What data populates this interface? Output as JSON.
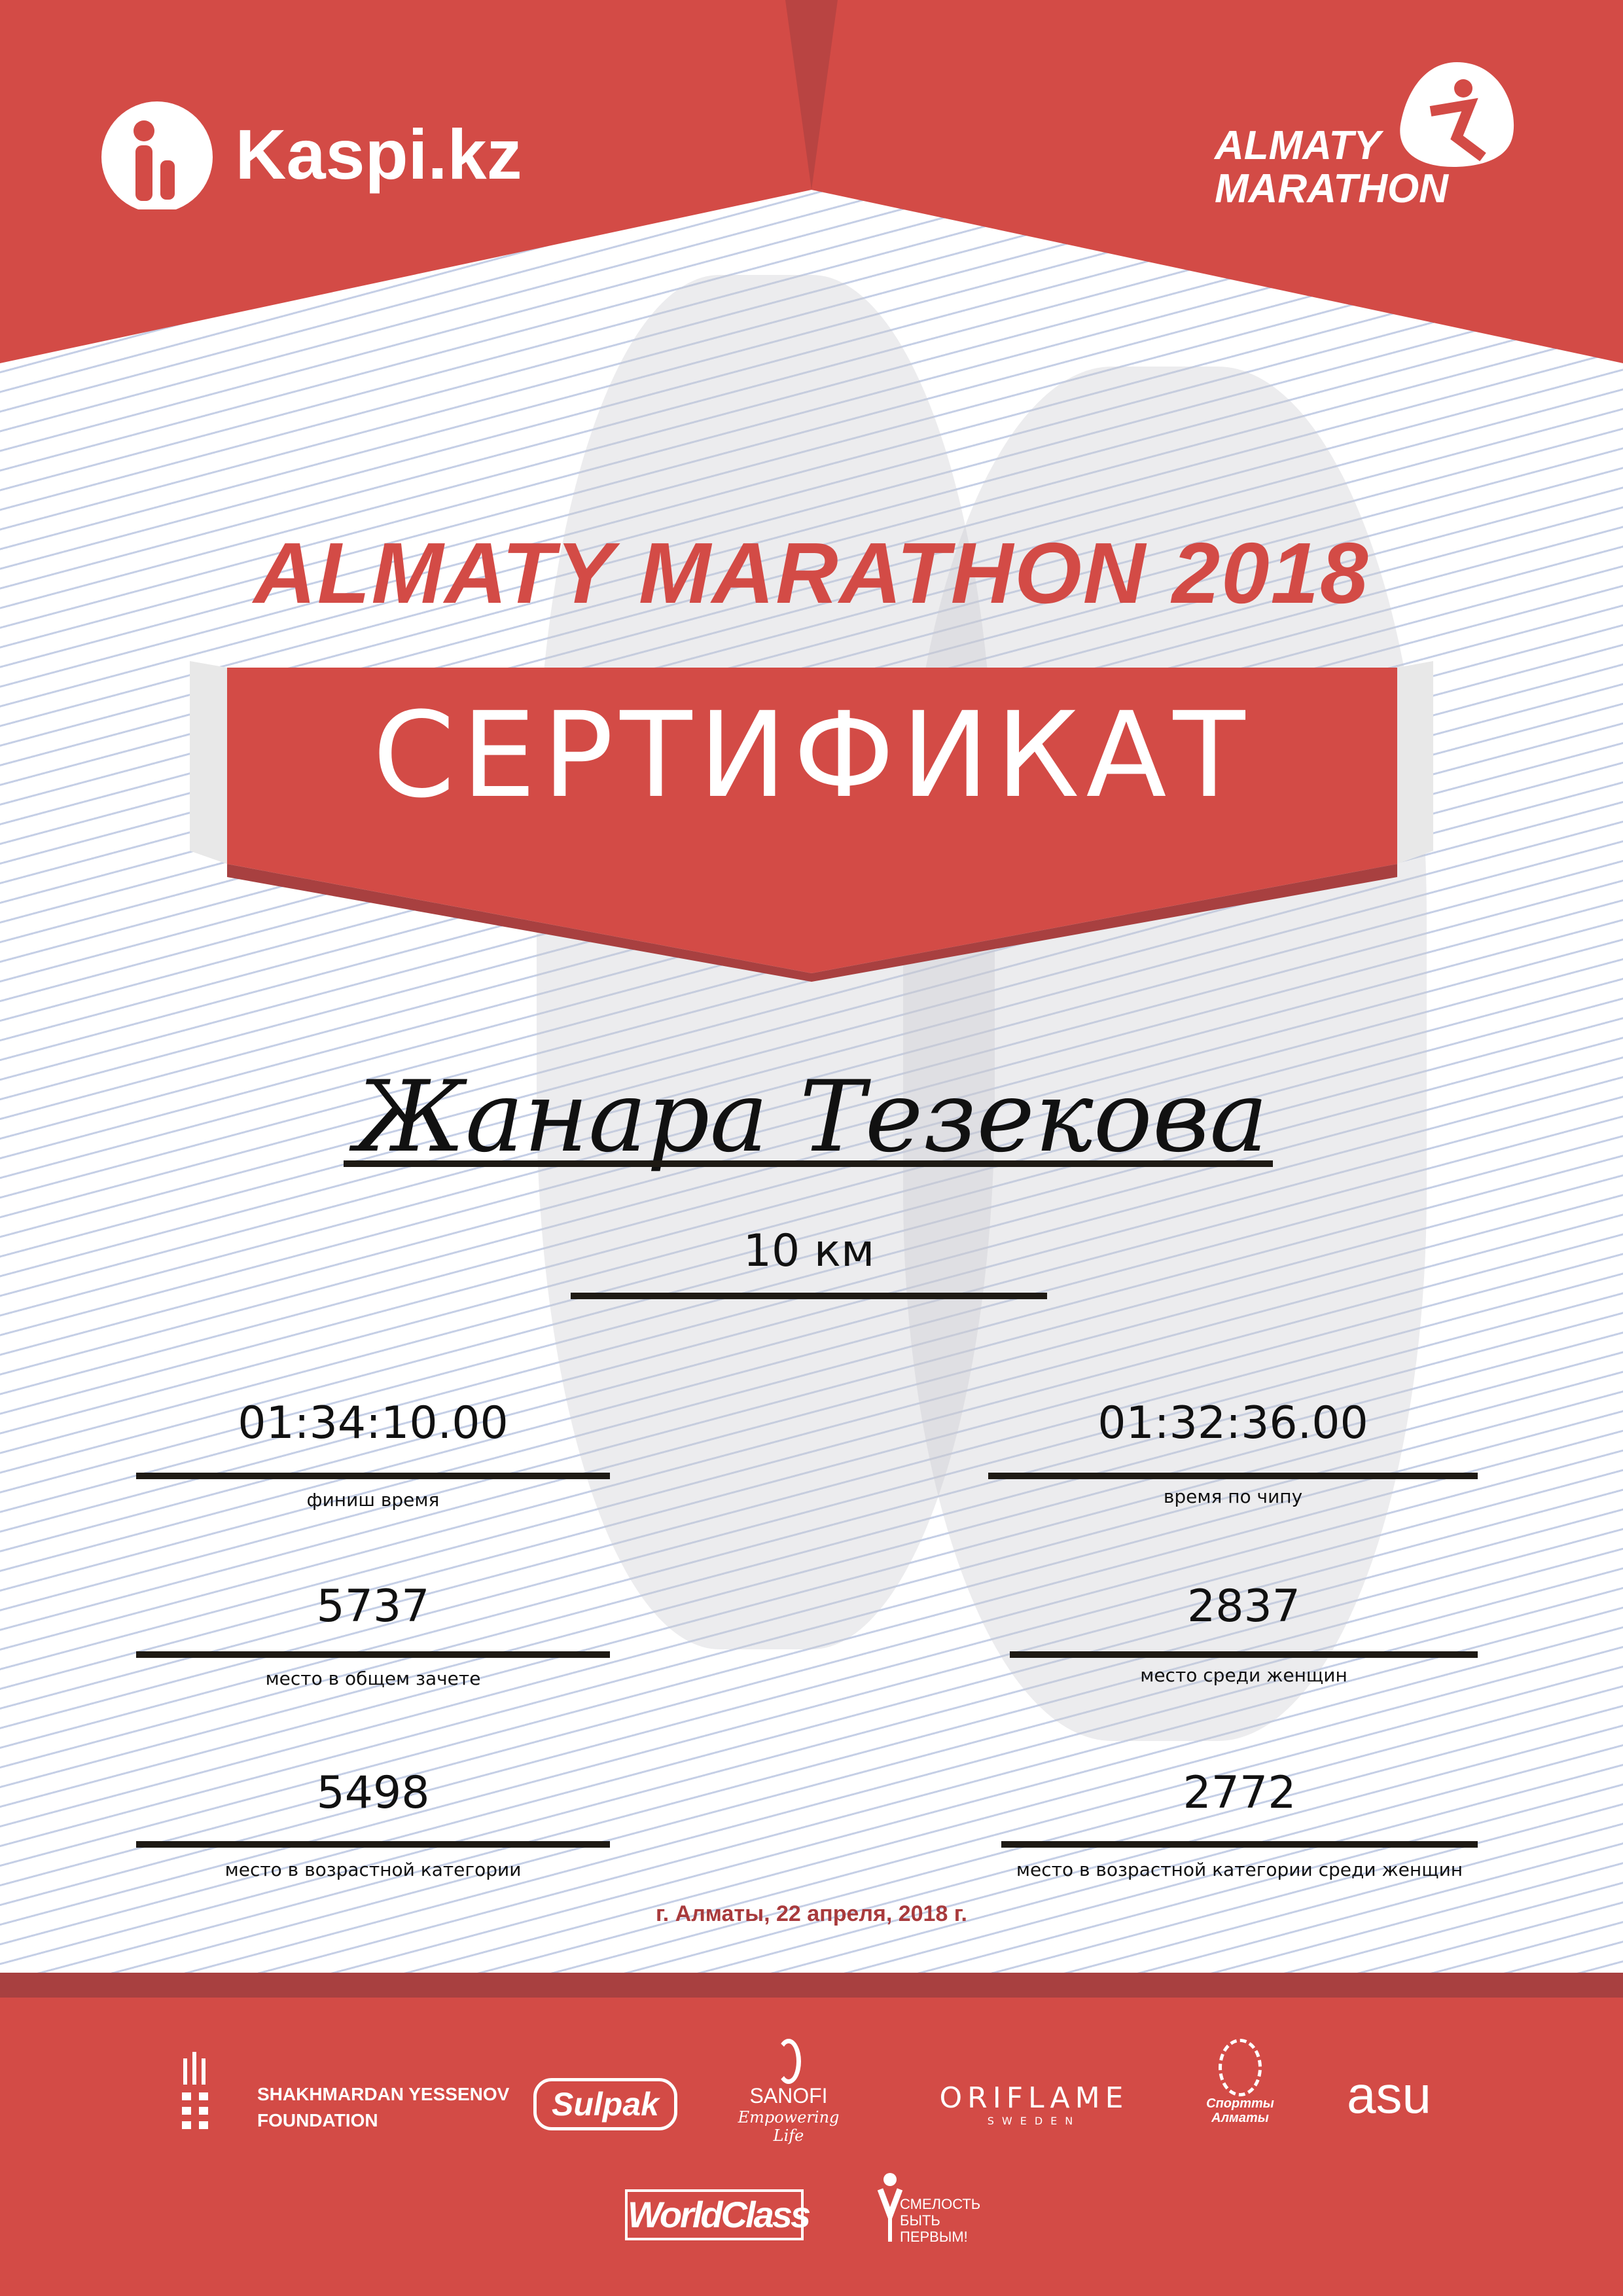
{
  "header": {
    "sponsor_logo": "Kaspi.kz",
    "event_logo_line1": "ALMATY",
    "event_logo_line2": "MARATHON"
  },
  "title": "ALMATY MARATHON 2018",
  "ribbon": "СЕРТИФИКАТ",
  "participant": {
    "name": "Жанара Тезекова",
    "distance": "10 км"
  },
  "results": {
    "finish_time": {
      "value": "01:34:10.00",
      "label": "финиш время"
    },
    "chip_time": {
      "value": "01:32:36.00",
      "label": "время по чипу"
    },
    "overall_place": {
      "value": "5737",
      "label": "место в общем зачете"
    },
    "women_place": {
      "value": "2837",
      "label": "место среди женщин"
    },
    "age_place": {
      "value": "5498",
      "label": "место в возрастной категории"
    },
    "age_women_place": {
      "value": "2772",
      "label": "место в возрастной категории среди женщин"
    }
  },
  "date": "г. Алматы, 22 апреля, 2018 г.",
  "partners": {
    "yessenov_line1": "SHAKHMARDAN YESSENOV",
    "yessenov_line2": "FOUNDATION",
    "sulpak": "Sulpak",
    "sanofi": "SANOFI",
    "sanofi_tagline": "Empowering Life",
    "oriflame": "ORIFLAME",
    "oriflame_sub": "SWEDEN",
    "sport_almaty": "Спортты Алматы",
    "asu": "asu",
    "worldclass": "WorldClass",
    "fund_line1": "СМЕЛОСТЬ",
    "fund_line2": "БЫТЬ",
    "fund_line3": "ПЕРВЫМ!"
  },
  "colors": {
    "brand_red": "#d34b46",
    "dark_red": "#a84040",
    "date_red": "#a83a3c"
  }
}
